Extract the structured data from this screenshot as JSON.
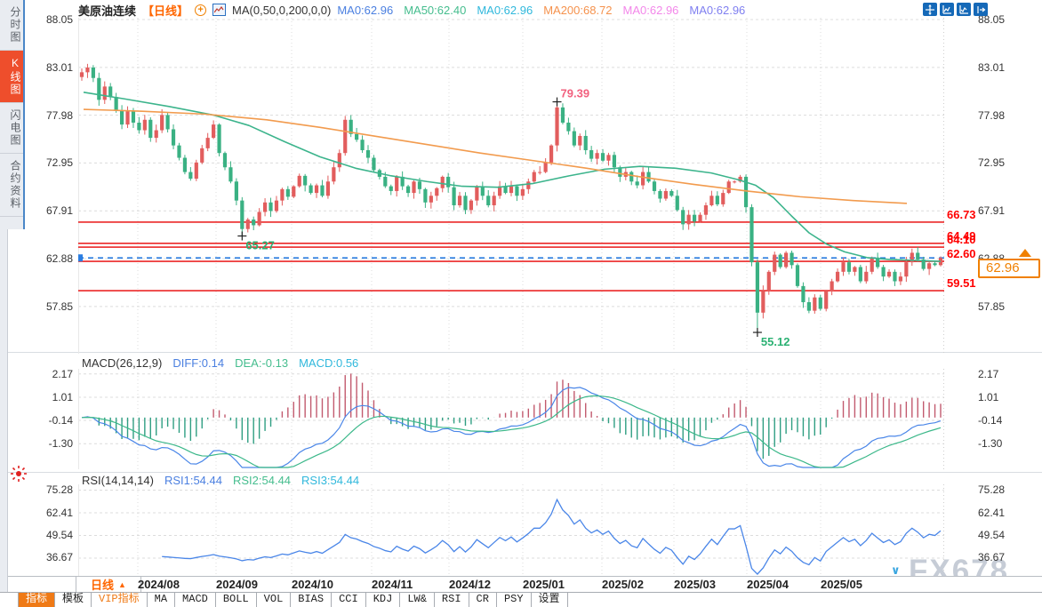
{
  "sidebar": {
    "tabs": [
      {
        "label": "分时图",
        "active": false
      },
      {
        "label": "K线图",
        "active": true
      },
      {
        "label": "闪电图",
        "active": false
      },
      {
        "label": "合约资料",
        "active": false
      }
    ]
  },
  "header": {
    "symbol": "美原油连续",
    "period": "【日线】",
    "plus_glyph": "+",
    "formula": "MA(0,50,0,200,0,0)",
    "ma_values": [
      {
        "text": "MA0:62.96",
        "color": "#4a7fe0"
      },
      {
        "text": "MA50:62.40",
        "color": "#45bd8e"
      },
      {
        "text": "MA0:62.96",
        "color": "#30b8dc"
      },
      {
        "text": "MA200:68.72",
        "color": "#f5924d"
      },
      {
        "text": "MA0:62.96",
        "color": "#f387ea"
      },
      {
        "text": "MA0:62.96",
        "color": "#7f7ff0"
      }
    ],
    "window_icons": [
      "pan-icon",
      "scale-x-axis-icon",
      "scale-y-axis-icon",
      "exit-chart-icon"
    ]
  },
  "chart_data": {
    "type": "candlestick",
    "title": "美原油连续 日线 (US Crude Oil Continuous, Daily)",
    "y_axis_labels": [
      "88.05",
      "83.01",
      "77.98",
      "72.95",
      "67.91",
      "62.88",
      "57.85"
    ],
    "x_labels": [
      "2024/08",
      "2024/09",
      "2024/10",
      "2024/11",
      "2024/12",
      "2025/01",
      "2025/02",
      "2025/03",
      "2025/04",
      "2025/05"
    ],
    "closes": [
      82.5,
      83.0,
      81.9,
      79.6,
      81.0,
      79.9,
      78.5,
      77.0,
      78.4,
      77.2,
      76.4,
      77.5,
      75.6,
      76.4,
      78.0,
      76.5,
      74.8,
      73.5,
      72.0,
      71.3,
      73.0,
      74.5,
      75.6,
      77.0,
      74.0,
      72.5,
      71.0,
      69.0,
      66.0,
      67.0,
      66.4,
      67.8,
      68.8,
      67.9,
      69.0,
      70.2,
      69.4,
      70.5,
      71.6,
      70.6,
      69.8,
      70.6,
      69.5,
      71.0,
      72.5,
      74.0,
      77.5,
      76.0,
      75.4,
      74.3,
      73.5,
      72.2,
      71.5,
      70.5,
      70.0,
      71.5,
      70.5,
      69.8,
      71.0,
      70.2,
      68.8,
      69.5,
      70.3,
      71.5,
      70.4,
      68.5,
      69.5,
      68.0,
      69.0,
      70.5,
      69.5,
      68.5,
      69.5,
      70.5,
      69.8,
      70.5,
      69.5,
      70.2,
      71.0,
      72.0,
      72.0,
      73.0,
      74.8,
      78.8,
      77.2,
      76.3,
      74.8,
      75.8,
      74.3,
      73.4,
      74.0,
      73.2,
      73.8,
      72.5,
      71.5,
      72.0,
      71.0,
      70.6,
      72.0,
      71.0,
      70.0,
      69.2,
      70.0,
      69.5,
      68.0,
      66.5,
      67.5,
      66.8,
      67.5,
      68.5,
      69.5,
      68.6,
      69.8,
      71.0,
      71.0,
      71.5,
      68.3,
      62.5,
      57.2,
      59.5,
      61.5,
      63.3,
      62.0,
      63.5,
      62.2,
      60.0,
      58.3,
      57.4,
      58.8,
      57.6,
      59.5,
      60.5,
      61.5,
      62.5,
      61.5,
      62.0,
      60.5,
      61.5,
      63.0,
      62.0,
      61.0,
      61.5,
      60.5,
      61.0,
      62.5,
      63.5,
      62.8,
      61.8,
      62.4,
      62.2,
      62.96
    ],
    "annotations": [
      {
        "index": 83,
        "price": 79.39,
        "label": "79.39",
        "color": "#f2607e",
        "position": "above"
      },
      {
        "index": 28,
        "price": 65.27,
        "label": "65.27",
        "color": "#2bb173",
        "position": "below"
      },
      {
        "index": 118,
        "price": 55.12,
        "label": "55.12",
        "color": "#2bb173",
        "position": "below"
      }
    ],
    "levels": [
      {
        "price": 66.73,
        "label": "66.73"
      },
      {
        "price": 64.49,
        "label": "64.49"
      },
      {
        "price": 64.1,
        "label": "64.10"
      },
      {
        "price": 62.6,
        "label": "62.60"
      },
      {
        "price": 59.51,
        "label": "59.51"
      }
    ],
    "dashed_level": 62.96,
    "current_price": "62.96",
    "ma50_path": [
      [
        94,
        80.4
      ],
      [
        140,
        79.7
      ],
      [
        190,
        78.9
      ],
      [
        240,
        78.0
      ],
      [
        280,
        76.9
      ],
      [
        320,
        75.2
      ],
      [
        360,
        73.6
      ],
      [
        400,
        72.4
      ],
      [
        440,
        71.6
      ],
      [
        480,
        71.0
      ],
      [
        520,
        70.5
      ],
      [
        560,
        70.4
      ],
      [
        600,
        70.8
      ],
      [
        640,
        71.6
      ],
      [
        680,
        72.3
      ],
      [
        720,
        72.6
      ],
      [
        760,
        72.4
      ],
      [
        800,
        71.9
      ],
      [
        830,
        71.2
      ],
      [
        850,
        70.6
      ],
      [
        870,
        69.3
      ],
      [
        890,
        67.4
      ],
      [
        910,
        65.6
      ],
      [
        930,
        64.4
      ],
      [
        950,
        63.6
      ],
      [
        975,
        63.0
      ],
      [
        1000,
        62.8
      ],
      [
        1030,
        62.7
      ],
      [
        1058,
        62.6
      ]
    ],
    "ma200_path": [
      [
        94,
        78.6
      ],
      [
        160,
        78.4
      ],
      [
        230,
        78.1
      ],
      [
        300,
        77.5
      ],
      [
        360,
        76.7
      ],
      [
        420,
        75.8
      ],
      [
        480,
        74.9
      ],
      [
        540,
        74.0
      ],
      [
        600,
        73.2
      ],
      [
        660,
        72.4
      ],
      [
        720,
        71.5
      ],
      [
        780,
        70.7
      ],
      [
        840,
        70.0
      ],
      [
        900,
        69.4
      ],
      [
        960,
        69.0
      ],
      [
        1020,
        68.7
      ]
    ],
    "colors": {
      "up": "#e25d5d",
      "down": "#3ab183",
      "ma50": "#3cb48c",
      "ma200": "#f29b4e",
      "level_line": "#e80000",
      "level_label": "#ff0000",
      "dashed": "#2a7de1",
      "current_box": "#f08000",
      "diff": "#4a86e8",
      "dea": "#3cb88a",
      "hist_pos": "#c25a6e",
      "hist_neg": "#2f9e82",
      "rsi": "#4a86e8"
    }
  },
  "macd_panel": {
    "title": "MACD(26,12,9)",
    "values": [
      {
        "text": "DIFF:0.14",
        "color": "#4a7fe0"
      },
      {
        "text": "DEA:-0.13",
        "color": "#45bd8e"
      },
      {
        "text": "MACD:0.56",
        "color": "#30b8dc"
      }
    ],
    "axis_labels": [
      "2.17",
      "1.01",
      "-0.14",
      "-1.30"
    ],
    "params": {
      "slow": 26,
      "fast": 12,
      "signal": 9
    }
  },
  "rsi_panel": {
    "title": "RSI(14,14,14)",
    "values": [
      {
        "text": "RSI1:54.44",
        "color": "#4a7fe0"
      },
      {
        "text": "RSI2:54.44",
        "color": "#45bd8e"
      },
      {
        "text": "RSI3:54.44",
        "color": "#30b8dc"
      }
    ],
    "axis_labels": [
      "75.28",
      "62.41",
      "49.54",
      "36.67"
    ],
    "period": 14
  },
  "bottom": {
    "period_label": "日线",
    "period_arrow": "▲",
    "date_marker_glyph": "∨",
    "toolbar": [
      {
        "label": "指标",
        "state": "active"
      },
      {
        "label": "模板",
        "state": "normal"
      },
      {
        "label": "VIP指标",
        "state": "vip"
      },
      {
        "label": "MA",
        "state": "normal"
      },
      {
        "label": "MACD",
        "state": "normal"
      },
      {
        "label": "BOLL",
        "state": "normal"
      },
      {
        "label": "VOL",
        "state": "normal"
      },
      {
        "label": "BIAS",
        "state": "normal"
      },
      {
        "label": "CCI",
        "state": "normal"
      },
      {
        "label": "KDJ",
        "state": "normal"
      },
      {
        "label": "LW&",
        "state": "normal"
      },
      {
        "label": "RSI",
        "state": "normal"
      },
      {
        "label": "CR",
        "state": "normal"
      },
      {
        "label": "PSY",
        "state": "normal"
      },
      {
        "label": "设置",
        "state": "normal"
      }
    ]
  },
  "watermark": "FX678"
}
